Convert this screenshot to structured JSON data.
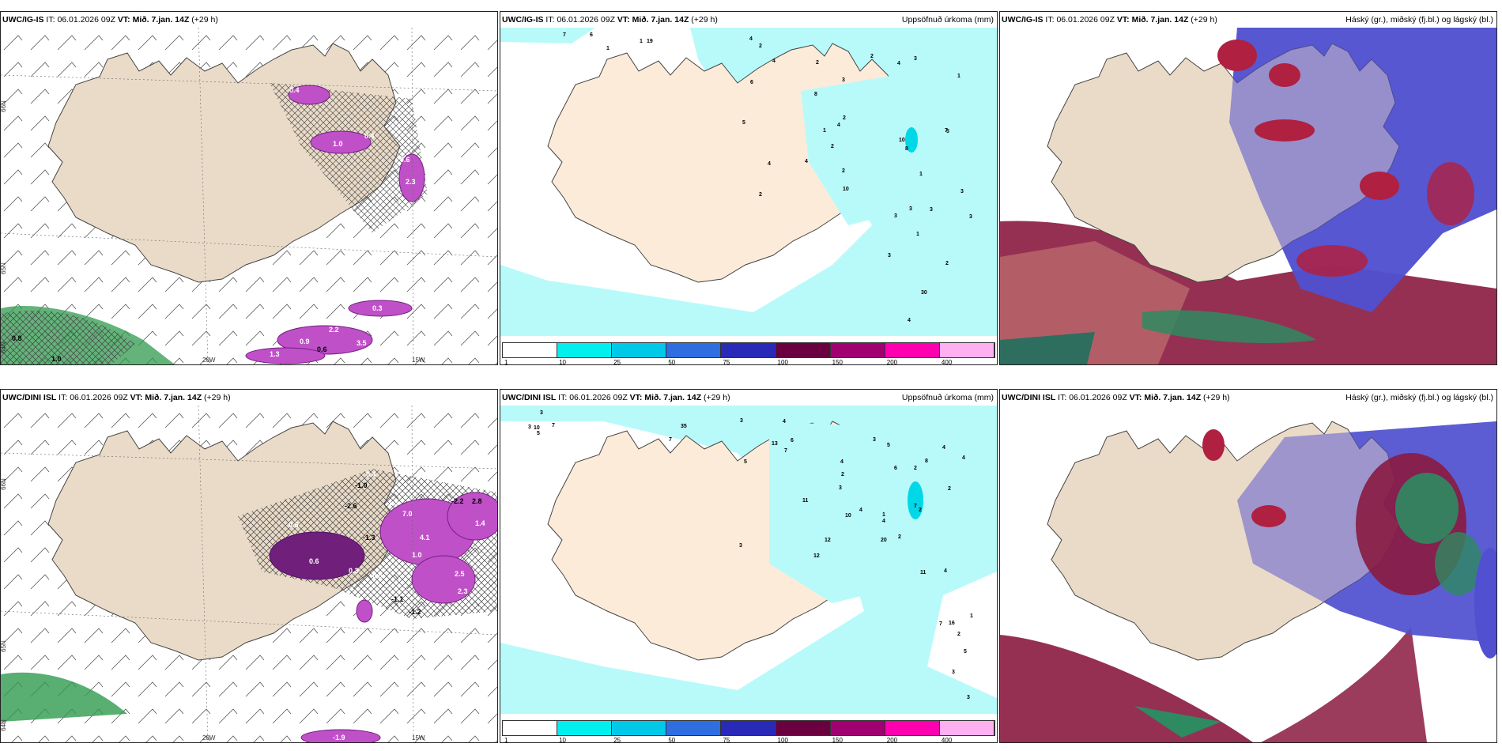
{
  "rows": [
    {
      "model": "UWC/IG-IS",
      "it_label": "IT:",
      "it_value": "06.01.2026 09Z",
      "vt_label": "VT:",
      "vt_value": "Mið. 7.jan. 14Z",
      "lead": "(+29 h)",
      "panel1_values": [
        "0.8",
        "1.0",
        "0.4",
        "1.0",
        "0.4",
        "0.6",
        "2.3",
        "0.9",
        "0.6",
        "3.5",
        "2.2",
        "1.3",
        "0.3"
      ],
      "panel2_values": [
        "2",
        "2",
        "5",
        "4",
        "3",
        "4",
        "3",
        "3",
        "10",
        "4",
        "3",
        "1",
        "2",
        "1",
        "1",
        "19",
        "30",
        "3",
        "2",
        "10",
        "1",
        "2",
        "3",
        "3",
        "1",
        "4",
        "2",
        "8",
        "2",
        "4",
        "1",
        "2",
        "7",
        "4",
        "6",
        "8",
        "3",
        "7",
        "5",
        "4",
        "6"
      ],
      "lat_labels": [
        "66N",
        "65N",
        "64N"
      ],
      "lon_labels": [
        "20W",
        "15W"
      ]
    },
    {
      "model": "UWC/DINI ISL",
      "it_label": "IT:",
      "it_value": "06.01.2026 09Z",
      "vt_label": "VT:",
      "vt_value": "Mið. 7.jan. 14Z",
      "lead": "(+29 h)",
      "panel1_values": [
        "0.4",
        "-1.0",
        "-2.6",
        "1.3",
        "7.0",
        "-1.3",
        "4.1",
        "1.0",
        "2.5",
        "2.3",
        "0.6",
        "0.3",
        "0.5",
        "-1.1",
        "-1.2",
        "-2.2",
        "2.8",
        "1.4",
        "0.6",
        "-1.9"
      ],
      "panel2_values": [
        "3",
        "2",
        "3",
        "4",
        "4",
        "4",
        "3",
        "2",
        "3",
        "7",
        "7",
        "10",
        "7",
        "3",
        "3",
        "2",
        "2",
        "1",
        "5",
        "7",
        "20",
        "35",
        "4",
        "5",
        "11",
        "12",
        "11",
        "16",
        "13",
        "10",
        "2",
        "3",
        "4",
        "6",
        "5",
        "2",
        "1",
        "4",
        "12",
        "3",
        "5",
        "4",
        "6",
        "7",
        "8"
      ],
      "lat_labels": [
        "66N",
        "65N",
        "64N"
      ],
      "lon_labels": [
        "20W",
        "15W"
      ]
    }
  ],
  "precip_title": "Uppsöfnuð úrkoma (mm)",
  "cloud_title": "Háský (gr.), miðský (fj.bl.) og lágský (bl.)",
  "legend": {
    "ticks": [
      "1",
      "10",
      "25",
      "50",
      "75",
      "100",
      "150",
      "200",
      "400"
    ],
    "colors": [
      "#ffffff",
      "#00f0f0",
      "#00c8e8",
      "#2f6ee0",
      "#2a2ab8",
      "#6a0040",
      "#a00070",
      "#ff00b0",
      "#ffb0f0"
    ]
  }
}
